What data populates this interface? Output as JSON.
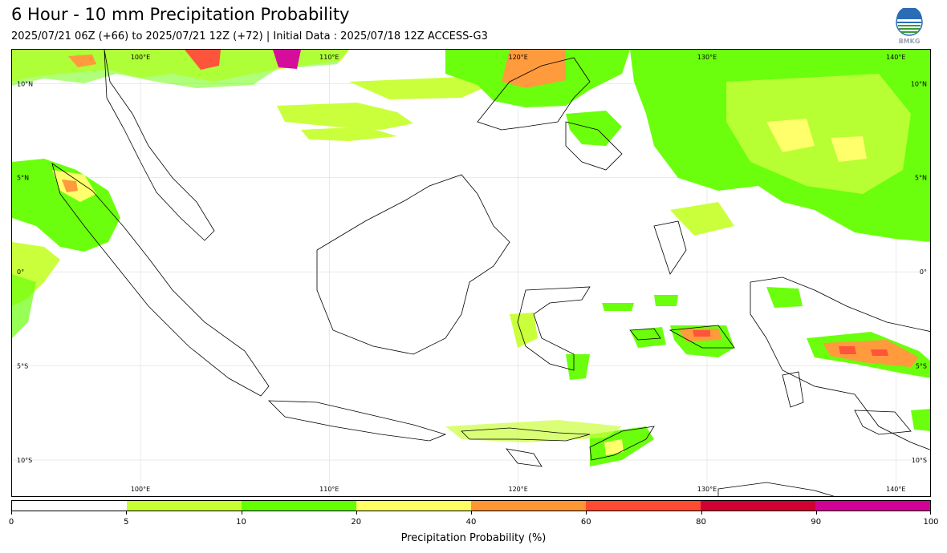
{
  "title": "6 Hour - 10 mm Precipitation Probability",
  "subtitle": "2025/07/21 06Z (+66) to 2025/07/21 12Z (+72) | Initial Data : 2025/07/18 12Z ACCESS-G3",
  "logo": {
    "icon": "bmkg-logo-icon",
    "text": "BMKG"
  },
  "map": {
    "lon_range": [
      93.2,
      141.9
    ],
    "lat_range": [
      -12.0,
      11.8
    ],
    "lon_labels": [
      "100°E",
      "110°E",
      "120°E",
      "130°E",
      "140°E"
    ],
    "lon_values": [
      100,
      110,
      120,
      130,
      140
    ],
    "lat_labels": [
      "10°N",
      "5°N",
      "0°",
      "5°S",
      "10°S"
    ],
    "lat_values": [
      10,
      5,
      0,
      -5,
      -10
    ],
    "gridlines": true
  },
  "colorbar": {
    "label": "Precipitation Probability (%)",
    "ticks": [
      "0",
      "5",
      "10",
      "20",
      "40",
      "60",
      "80",
      "90",
      "100"
    ],
    "colors": [
      "#ffffff",
      "#c8ff32",
      "#64ff00",
      "#ffff64",
      "#ff9632",
      "#ff4b32",
      "#d20032",
      "#d20096"
    ]
  }
}
